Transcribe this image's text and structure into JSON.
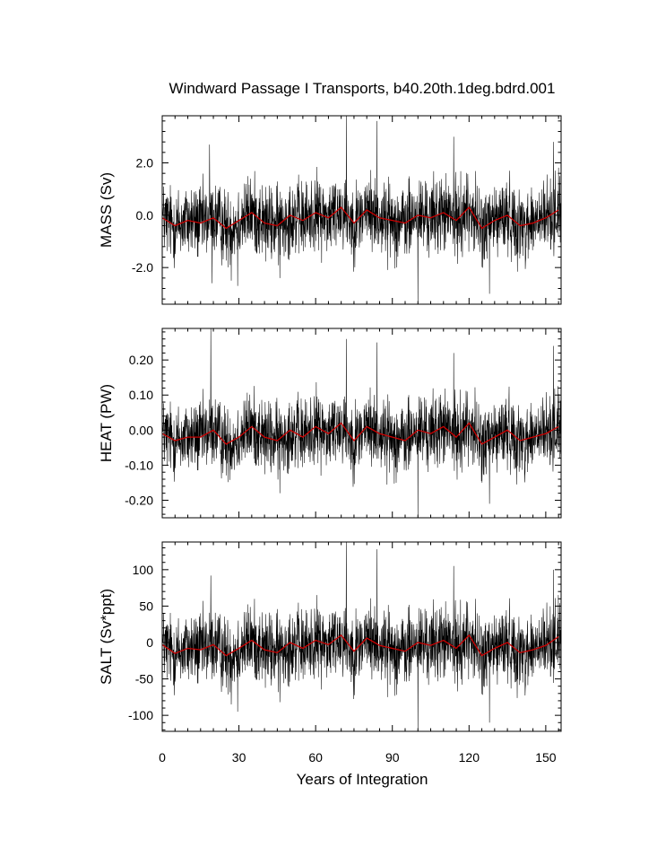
{
  "chart_data": {
    "type": "line",
    "title": "Windward Passage I Transports, b40.20th.1deg.bdrd.001",
    "xlabel": "Years of Integration",
    "xlim": [
      0,
      156
    ],
    "xticks": [
      0,
      30,
      60,
      90,
      120,
      150
    ],
    "xtick_labels": [
      "0",
      "30",
      "60",
      "90",
      "120",
      "150"
    ],
    "grid": false,
    "legend": "none",
    "colors": {
      "monthly": "#000000",
      "smoothed": "#cc0000"
    },
    "panels": [
      {
        "ylabel": "MASS (Sv)",
        "ylim": [
          -3.4,
          3.8
        ],
        "yticks": [
          -2.0,
          0.0,
          2.0
        ],
        "ytick_labels": [
          "-2.0",
          "0.0",
          "2.0"
        ],
        "noise_amplitude": 0.9,
        "spikes": [
          [
            18.5,
            2.7
          ],
          [
            19.5,
            -2.6
          ],
          [
            27,
            -2.5
          ],
          [
            29.5,
            -2.7
          ],
          [
            46,
            -2.4
          ],
          [
            72,
            3.8
          ],
          [
            84,
            3.6
          ],
          [
            100,
            -3.4
          ],
          [
            114,
            3.0
          ],
          [
            128,
            -3.0
          ],
          [
            153,
            2.8
          ]
        ],
        "smoothed": {
          "x": [
            0,
            5,
            10,
            15,
            20,
            25,
            30,
            35,
            40,
            45,
            50,
            55,
            60,
            65,
            70,
            75,
            80,
            85,
            90,
            95,
            100,
            105,
            110,
            115,
            120,
            125,
            130,
            135,
            140,
            145,
            150,
            155
          ],
          "y": [
            -0.1,
            -0.4,
            -0.2,
            -0.3,
            -0.1,
            -0.5,
            -0.2,
            0.1,
            -0.3,
            -0.4,
            0.0,
            -0.2,
            0.1,
            -0.1,
            0.3,
            -0.3,
            0.2,
            -0.1,
            -0.2,
            -0.3,
            0.0,
            -0.1,
            0.1,
            -0.2,
            0.3,
            -0.5,
            -0.2,
            0.0,
            -0.4,
            -0.3,
            -0.1,
            0.2
          ]
        }
      },
      {
        "ylabel": "HEAT (PW)",
        "ylim": [
          -0.25,
          0.29
        ],
        "yticks": [
          -0.2,
          -0.1,
          0.0,
          0.1,
          0.2
        ],
        "ytick_labels": [
          "-0.20",
          "-0.10",
          "0.00",
          "0.10",
          "0.20"
        ],
        "noise_amplitude": 0.065,
        "spikes": [
          [
            19,
            0.29
          ],
          [
            46,
            -0.18
          ],
          [
            72,
            0.26
          ],
          [
            84,
            0.25
          ],
          [
            100,
            -0.25
          ],
          [
            114,
            0.22
          ],
          [
            128,
            -0.21
          ],
          [
            153,
            0.24
          ]
        ],
        "smoothed": {
          "x": [
            0,
            5,
            10,
            15,
            20,
            25,
            30,
            35,
            40,
            45,
            50,
            55,
            60,
            65,
            70,
            75,
            80,
            85,
            90,
            95,
            100,
            105,
            110,
            115,
            120,
            125,
            130,
            135,
            140,
            145,
            150,
            155
          ],
          "y": [
            -0.01,
            -0.03,
            -0.02,
            -0.02,
            0.0,
            -0.04,
            -0.02,
            0.01,
            -0.02,
            -0.03,
            0.0,
            -0.02,
            0.01,
            -0.01,
            0.02,
            -0.03,
            0.01,
            -0.01,
            -0.02,
            -0.03,
            0.0,
            -0.01,
            0.01,
            -0.02,
            0.02,
            -0.04,
            -0.02,
            0.0,
            -0.03,
            -0.02,
            -0.01,
            0.01
          ]
        }
      },
      {
        "ylabel": "SALT (Sv*ppt)",
        "ylim": [
          -122,
          138
        ],
        "yticks": [
          -100,
          -50,
          0,
          50,
          100
        ],
        "ytick_labels": [
          "-100",
          "-50",
          "0",
          "50",
          "100"
        ],
        "noise_amplitude": 32,
        "spikes": [
          [
            19,
            92
          ],
          [
            27,
            -85
          ],
          [
            29.5,
            -95
          ],
          [
            46,
            -82
          ],
          [
            72,
            138
          ],
          [
            84,
            128
          ],
          [
            100,
            -122
          ],
          [
            114,
            105
          ],
          [
            128,
            -110
          ],
          [
            153,
            100
          ]
        ],
        "smoothed": {
          "x": [
            0,
            5,
            10,
            15,
            20,
            25,
            30,
            35,
            40,
            45,
            50,
            55,
            60,
            65,
            70,
            75,
            80,
            85,
            90,
            95,
            100,
            105,
            110,
            115,
            120,
            125,
            130,
            135,
            140,
            145,
            150,
            155
          ],
          "y": [
            -3,
            -15,
            -8,
            -10,
            -3,
            -18,
            -8,
            3,
            -10,
            -14,
            0,
            -8,
            3,
            -3,
            10,
            -12,
            6,
            -4,
            -8,
            -12,
            0,
            -4,
            3,
            -8,
            10,
            -18,
            -8,
            0,
            -14,
            -10,
            -4,
            8
          ]
        }
      }
    ]
  }
}
